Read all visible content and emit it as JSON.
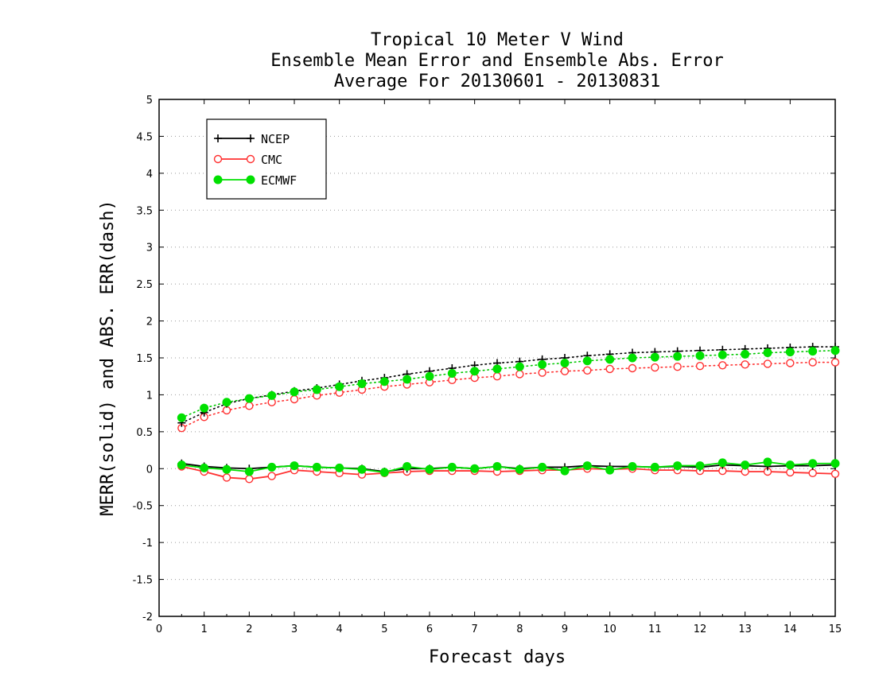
{
  "chart_data": {
    "type": "line",
    "title": [
      "Tropical 10 Meter V Wind",
      "Ensemble Mean Error and Ensemble Abs. Error",
      "Average For 20130601 - 20130831"
    ],
    "xlabel": "Forecast days",
    "ylabel": "MERR(solid) and ABS. ERR(dash)",
    "xlim": [
      0,
      15
    ],
    "ylim": [
      -2,
      5
    ],
    "xticks": [
      "0",
      "1",
      "2",
      "3",
      "4",
      "5",
      "6",
      "7",
      "8",
      "9",
      "10",
      "11",
      "12",
      "13",
      "14",
      "15"
    ],
    "yticks": [
      "5",
      "4.5",
      "4",
      "3.5",
      "3",
      "2.5",
      "2",
      "1.5",
      "1",
      "0.5",
      "0",
      "-0.5",
      "-1",
      "-1.5",
      "-2"
    ],
    "grid": "horizontal dotted",
    "legend_position": "top-left",
    "x": [
      0.5,
      1,
      1.5,
      2,
      2.5,
      3,
      3.5,
      4,
      4.5,
      5,
      5.5,
      6,
      6.5,
      7,
      7.5,
      8,
      8.5,
      9,
      9.5,
      10,
      10.5,
      11,
      11.5,
      12,
      12.5,
      13,
      13.5,
      14,
      14.5,
      15
    ],
    "series": [
      {
        "name": "NCEP",
        "color": "#000000",
        "marker": "plus",
        "mean_error": [
          0.07,
          0.03,
          0.01,
          0.0,
          0.02,
          0.04,
          0.02,
          0.01,
          0.0,
          -0.04,
          0.0,
          0.0,
          0.02,
          0.0,
          0.03,
          0.0,
          0.02,
          0.02,
          0.04,
          0.03,
          0.03,
          0.02,
          0.03,
          0.02,
          0.05,
          0.04,
          0.03,
          0.04,
          0.04,
          0.05
        ],
        "abs_error": [
          0.62,
          0.76,
          0.88,
          0.95,
          1.0,
          1.05,
          1.09,
          1.14,
          1.19,
          1.23,
          1.28,
          1.32,
          1.36,
          1.4,
          1.43,
          1.45,
          1.48,
          1.5,
          1.53,
          1.55,
          1.57,
          1.58,
          1.59,
          1.6,
          1.61,
          1.62,
          1.63,
          1.64,
          1.65,
          1.65
        ]
      },
      {
        "name": "CMC",
        "color": "#ff3030",
        "marker": "open-circle",
        "mean_error": [
          0.03,
          -0.04,
          -0.12,
          -0.14,
          -0.1,
          -0.02,
          -0.04,
          -0.06,
          -0.08,
          -0.06,
          -0.04,
          -0.03,
          -0.03,
          -0.03,
          -0.04,
          -0.03,
          -0.02,
          -0.02,
          0.0,
          -0.01,
          0.0,
          -0.02,
          -0.02,
          -0.03,
          -0.03,
          -0.04,
          -0.04,
          -0.05,
          -0.06,
          -0.07
        ],
        "abs_error": [
          0.55,
          0.7,
          0.79,
          0.85,
          0.9,
          0.94,
          0.99,
          1.03,
          1.07,
          1.11,
          1.14,
          1.17,
          1.2,
          1.23,
          1.25,
          1.28,
          1.3,
          1.32,
          1.33,
          1.35,
          1.36,
          1.37,
          1.38,
          1.39,
          1.4,
          1.41,
          1.42,
          1.43,
          1.44,
          1.44
        ]
      },
      {
        "name": "ECMWF",
        "color": "#00e000",
        "marker": "filled-circle",
        "mean_error": [
          0.05,
          0.01,
          -0.01,
          -0.04,
          0.02,
          0.04,
          0.02,
          0.01,
          -0.01,
          -0.05,
          0.03,
          -0.01,
          0.02,
          0.0,
          0.03,
          -0.01,
          0.02,
          -0.03,
          0.04,
          -0.02,
          0.03,
          0.02,
          0.04,
          0.04,
          0.08,
          0.05,
          0.09,
          0.05,
          0.07,
          0.07
        ],
        "abs_error": [
          0.69,
          0.82,
          0.9,
          0.95,
          0.99,
          1.04,
          1.07,
          1.11,
          1.15,
          1.18,
          1.21,
          1.25,
          1.29,
          1.32,
          1.35,
          1.38,
          1.41,
          1.43,
          1.46,
          1.48,
          1.5,
          1.51,
          1.52,
          1.53,
          1.54,
          1.55,
          1.57,
          1.58,
          1.59,
          1.6
        ]
      }
    ]
  }
}
